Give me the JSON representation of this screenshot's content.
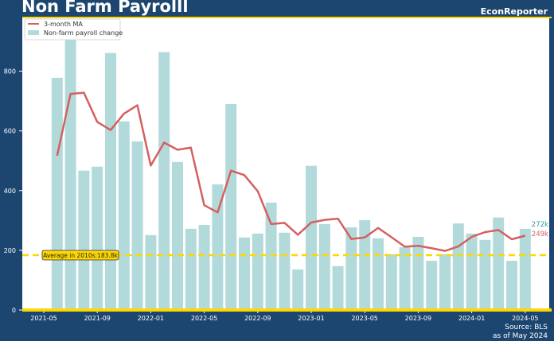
{
  "header": {
    "title": "Non Farm Payrolll",
    "brand": "EconReporter"
  },
  "footer": {
    "source": "Source: BLS",
    "asof": "as of May 2024"
  },
  "colors": {
    "background": "#1c4670",
    "bar": "#b3dadb",
    "line": "#d46060",
    "accent": "#ffd700",
    "bar_label": "#2a9d9a"
  },
  "chart_data": {
    "type": "bar+line",
    "title": "Non Farm Payrolll",
    "xlabel": "",
    "ylabel": "",
    "ylim": [
      0,
      980
    ],
    "yticks": [
      0,
      200,
      400,
      600,
      800
    ],
    "xticks": [
      "2021-05",
      "2021-09",
      "2022-01",
      "2022-05",
      "2022-09",
      "2023-01",
      "2023-05",
      "2023-09",
      "2024-01",
      "2024-05"
    ],
    "legend": {
      "placement": "top-left",
      "entries": [
        "3-month MA",
        "Non-farm payroll change"
      ]
    },
    "x": [
      "2021-06",
      "2021-07",
      "2021-08",
      "2021-09",
      "2021-10",
      "2021-11",
      "2021-12",
      "2022-01",
      "2022-02",
      "2022-03",
      "2022-04",
      "2022-05",
      "2022-06",
      "2022-07",
      "2022-08",
      "2022-09",
      "2022-10",
      "2022-11",
      "2022-12",
      "2023-01",
      "2023-02",
      "2023-03",
      "2023-04",
      "2023-05",
      "2023-06",
      "2023-07",
      "2023-08",
      "2023-09",
      "2023-10",
      "2023-11",
      "2023-12",
      "2024-01",
      "2024-02",
      "2024-03",
      "2024-04",
      "2024-05"
    ],
    "series": [
      {
        "name": "Non-farm payroll change",
        "type": "bar",
        "values": [
          778,
          920,
          467,
          480,
          861,
          632,
          565,
          251,
          864,
          496,
          272,
          285,
          421,
          690,
          243,
          256,
          360,
          259,
          136,
          483,
          288,
          147,
          277,
          301,
          240,
          187,
          210,
          245,
          165,
          187,
          290,
          256,
          235,
          310,
          165,
          272
        ]
      },
      {
        "name": "3-month MA",
        "type": "line",
        "values": [
          517,
          724,
          728,
          630,
          603,
          658,
          686,
          484,
          561,
          537,
          544,
          351,
          327,
          467,
          452,
          398,
          288,
          292,
          252,
          293,
          302,
          306,
          238,
          243,
          275,
          244,
          212,
          215,
          207,
          198,
          213,
          245,
          261,
          268,
          237,
          249
        ]
      }
    ],
    "reference_line": {
      "value": 183.8,
      "label": "Average in 2010s:183.8k"
    },
    "end_labels": {
      "bar": "272k",
      "line": "249k"
    }
  }
}
